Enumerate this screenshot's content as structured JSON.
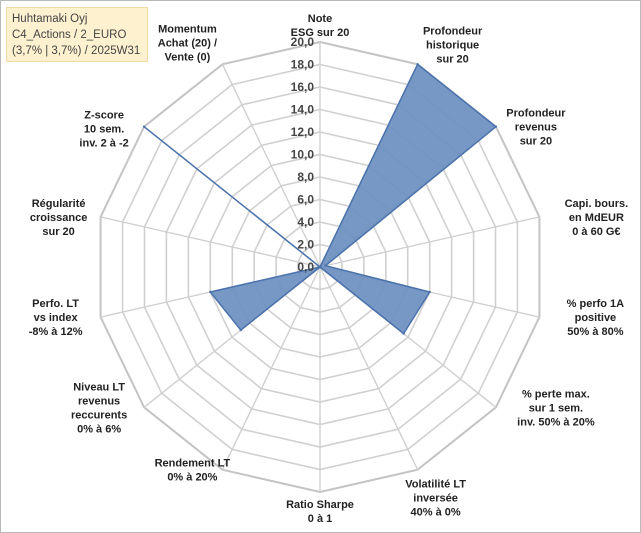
{
  "info": {
    "line1": "Huhtamaki Oyj",
    "line2": "C4_Actions / 2_EURO",
    "line3": "(3,7% | 3,7%) / 2025W31"
  },
  "chart_data": {
    "type": "radar",
    "title": "",
    "rmax": 20,
    "ticks": [
      "0,0",
      "2,0",
      "4,0",
      "6,0",
      "8,0",
      "10,0",
      "12,0",
      "14,0",
      "16,0",
      "18,0",
      "20,0"
    ],
    "tick_values": [
      0,
      2,
      4,
      6,
      8,
      10,
      12,
      14,
      16,
      18,
      20
    ],
    "axes": [
      {
        "label": [
          "Note",
          "ESG sur 20"
        ],
        "value": 0
      },
      {
        "label": [
          "Profondeur",
          "historique",
          "sur 20"
        ],
        "value": 20
      },
      {
        "label": [
          "Profondeur",
          "revenus",
          "sur 20"
        ],
        "value": 20
      },
      {
        "label": [
          "Capi. bours.",
          "en MdEUR",
          "0 à 60 G€"
        ],
        "value": 0.5
      },
      {
        "label": [
          "% perfo 1A",
          "positive",
          "50% à 80%"
        ],
        "value": 10
      },
      {
        "label": [
          "% perte max.",
          "sur 1 sem.",
          "inv. 50% à 20%"
        ],
        "value": 9.5
      },
      {
        "label": [
          "Volatilité LT",
          "inversée",
          "40% à 0%"
        ],
        "value": 0
      },
      {
        "label": [
          "Ratio Sharpe",
          "0 à 1"
        ],
        "value": 0
      },
      {
        "label": [
          "Rendement LT",
          "0% à 20%"
        ],
        "value": 0
      },
      {
        "label": [
          "Niveau LT",
          "revenus",
          "reccurents",
          "0% à 6%"
        ],
        "value": 9
      },
      {
        "label": [
          "Perfo. LT",
          "vs index",
          "-8% à 12%"
        ],
        "value": 10
      },
      {
        "label": [
          "Régularité",
          "croissance",
          "sur 20"
        ],
        "value": 0
      },
      {
        "label": [
          "Z-score",
          "10 sem.",
          "inv. 2 à -2"
        ],
        "value": 20
      },
      {
        "label": [
          "Momentum",
          "Achat (20) /",
          "Vente (0)"
        ],
        "value": 0
      }
    ],
    "colors": {
      "fill": "#6b8fbf",
      "stroke": "#4a72ac",
      "grid": "#d0d0d0"
    }
  }
}
